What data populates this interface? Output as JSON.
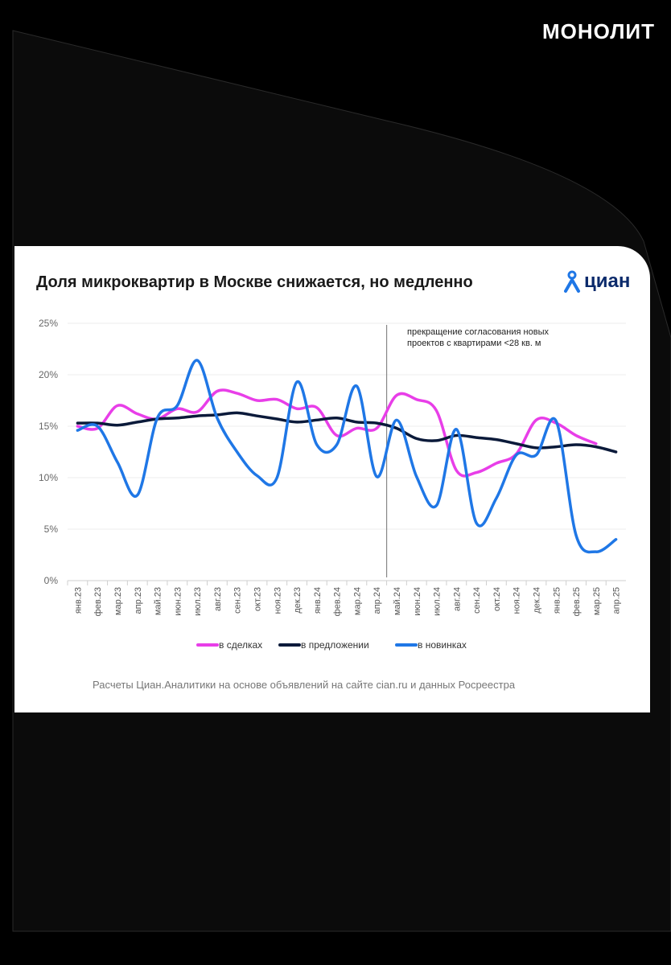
{
  "brand": "МОНОЛИТ",
  "card": {
    "title": "Доля микроквартир в Москве снижается, но медленно",
    "logo_text": "циан",
    "note": "прекращение согласования новых проектов с квартирами <28 кв. м",
    "source": "Расчеты Циан.Аналитики на основе объявлений на сайте cian.ru и данных Росреестра"
  },
  "chart_data": {
    "type": "line",
    "categories": [
      "янв.23",
      "фев.23",
      "мар.23",
      "апр.23",
      "май.23",
      "июн.23",
      "июл.23",
      "авг.23",
      "сен.23",
      "окт.23",
      "ноя.23",
      "дек.23",
      "янв.24",
      "фев.24",
      "мар.24",
      "апр.24",
      "май.24",
      "июн.24",
      "июл.24",
      "авг.24",
      "сен.24",
      "окт.24",
      "ноя.24",
      "дек.24",
      "янв.25",
      "фев.25",
      "мар.25",
      "апр.25"
    ],
    "yticks": [
      "0%",
      "5%",
      "10%",
      "15%",
      "20%",
      "25%"
    ],
    "ylim": [
      0,
      25
    ],
    "grid": true,
    "legend_position": "bottom-left",
    "annotation_index": 16,
    "series": [
      {
        "name": "в сделках",
        "color": "#e83ee8",
        "values": [
          15.0,
          14.8,
          17.0,
          16.2,
          15.7,
          16.7,
          16.4,
          18.4,
          18.2,
          17.5,
          17.6,
          16.7,
          16.8,
          14.1,
          14.8,
          14.8,
          18.0,
          17.6,
          16.5,
          10.7,
          10.5,
          11.4,
          12.3,
          15.6,
          15.3,
          14.1,
          13.3,
          null
        ]
      },
      {
        "name": "в предложении",
        "color": "#0b1a3a",
        "values": [
          15.3,
          15.3,
          15.1,
          15.4,
          15.7,
          15.8,
          16.0,
          16.1,
          16.3,
          16.0,
          15.7,
          15.4,
          15.6,
          15.8,
          15.4,
          15.3,
          14.8,
          13.8,
          13.6,
          14.1,
          13.9,
          13.7,
          13.3,
          12.9,
          13.0,
          13.2,
          13.0,
          12.5
        ]
      },
      {
        "name": "в новинках",
        "color": "#1f77e6",
        "values": [
          14.6,
          15.0,
          11.5,
          8.3,
          15.8,
          17.0,
          21.4,
          15.8,
          12.5,
          10.2,
          10.0,
          19.3,
          13.2,
          13.2,
          18.9,
          10.1,
          15.6,
          10.1,
          7.3,
          14.7,
          5.6,
          8.0,
          12.2,
          12.2,
          15.5,
          4.4,
          2.8,
          4.0
        ]
      }
    ]
  }
}
